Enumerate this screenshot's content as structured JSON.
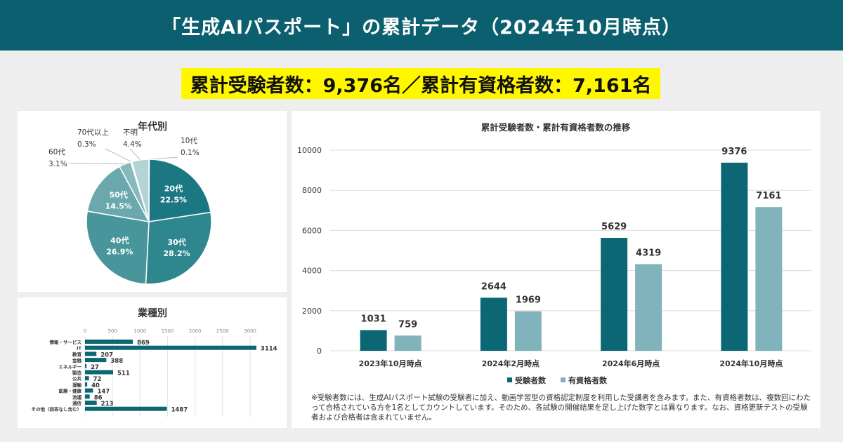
{
  "header": {
    "title": "「生成AIパスポート」の累計データ（2024年10月時点）"
  },
  "summary": {
    "text": "累計受験者数：9,376名／累計有資格者数：7,161名"
  },
  "colors": {
    "header": "#0b5f6e",
    "highlight": "#fff700",
    "dark_series": "#0b6773",
    "light_series": "#80b3bb"
  },
  "chart_data": [
    {
      "type": "pie",
      "title": "年代別",
      "slices": [
        {
          "label": "10代",
          "value": 0.1,
          "display": "0.1%",
          "color": "#c4dcdf"
        },
        {
          "label": "20代",
          "value": 22.5,
          "display": "22.5%",
          "color": "#1b7782"
        },
        {
          "label": "30代",
          "value": 28.2,
          "display": "28.2%",
          "color": "#2e868e"
        },
        {
          "label": "40代",
          "value": 26.9,
          "display": "26.9%",
          "color": "#48959b"
        },
        {
          "label": "50代",
          "value": 14.5,
          "display": "14.5%",
          "color": "#6aa8ad"
        },
        {
          "label": "60代",
          "value": 3.1,
          "display": "3.1%",
          "color": "#87b9bd"
        },
        {
          "label": "70代以上",
          "value": 0.3,
          "display": "0.3%",
          "color": "#9cc5c9"
        },
        {
          "label": "不明",
          "value": 4.4,
          "display": "4.4%",
          "color": "#b3d3d6"
        }
      ]
    },
    {
      "type": "bar",
      "orientation": "horizontal",
      "title": "業種別",
      "categories": [
        "情報・サービス",
        "IT",
        "教育",
        "金融",
        "エネルギー",
        "製造",
        "公共",
        "運輸",
        "医療・健康",
        "流通",
        "通信",
        "その他（回答なし含む）"
      ],
      "values": [
        869,
        3114,
        207,
        388,
        27,
        511,
        72,
        40,
        147,
        86,
        213,
        1487
      ],
      "xlim": [
        0,
        3000
      ],
      "xticks": [
        0,
        500,
        1000,
        1500,
        2000,
        2500,
        3000
      ],
      "grid": true
    },
    {
      "type": "bar",
      "title": "累計受験者数・累計有資格者数の推移",
      "categories": [
        "2023年10月時点",
        "2024年2月時点",
        "2024年6月時点",
        "2024年10月時点"
      ],
      "series": [
        {
          "name": "受験者数",
          "values": [
            1031,
            2644,
            5629,
            9376
          ]
        },
        {
          "name": "有資格者数",
          "values": [
            759,
            1969,
            4319,
            7161
          ]
        }
      ],
      "ylim": [
        0,
        10000
      ],
      "yticks": [
        0,
        2000,
        4000,
        6000,
        8000,
        10000
      ],
      "grid": true,
      "legend": "bottom"
    }
  ],
  "footnote": "※受験者数には、生成AIパスポート試験の受験者に加え、動画学習型の資格認定制度を利用した受講者を含みます。また、有資格者数は、複数回にわたって合格されている方を1名としてカウントしています。そのため、各試験の開催結果を足し上げた数字とは異なります。なお、資格更新テストの受験者および合格者は含まれていません。"
}
